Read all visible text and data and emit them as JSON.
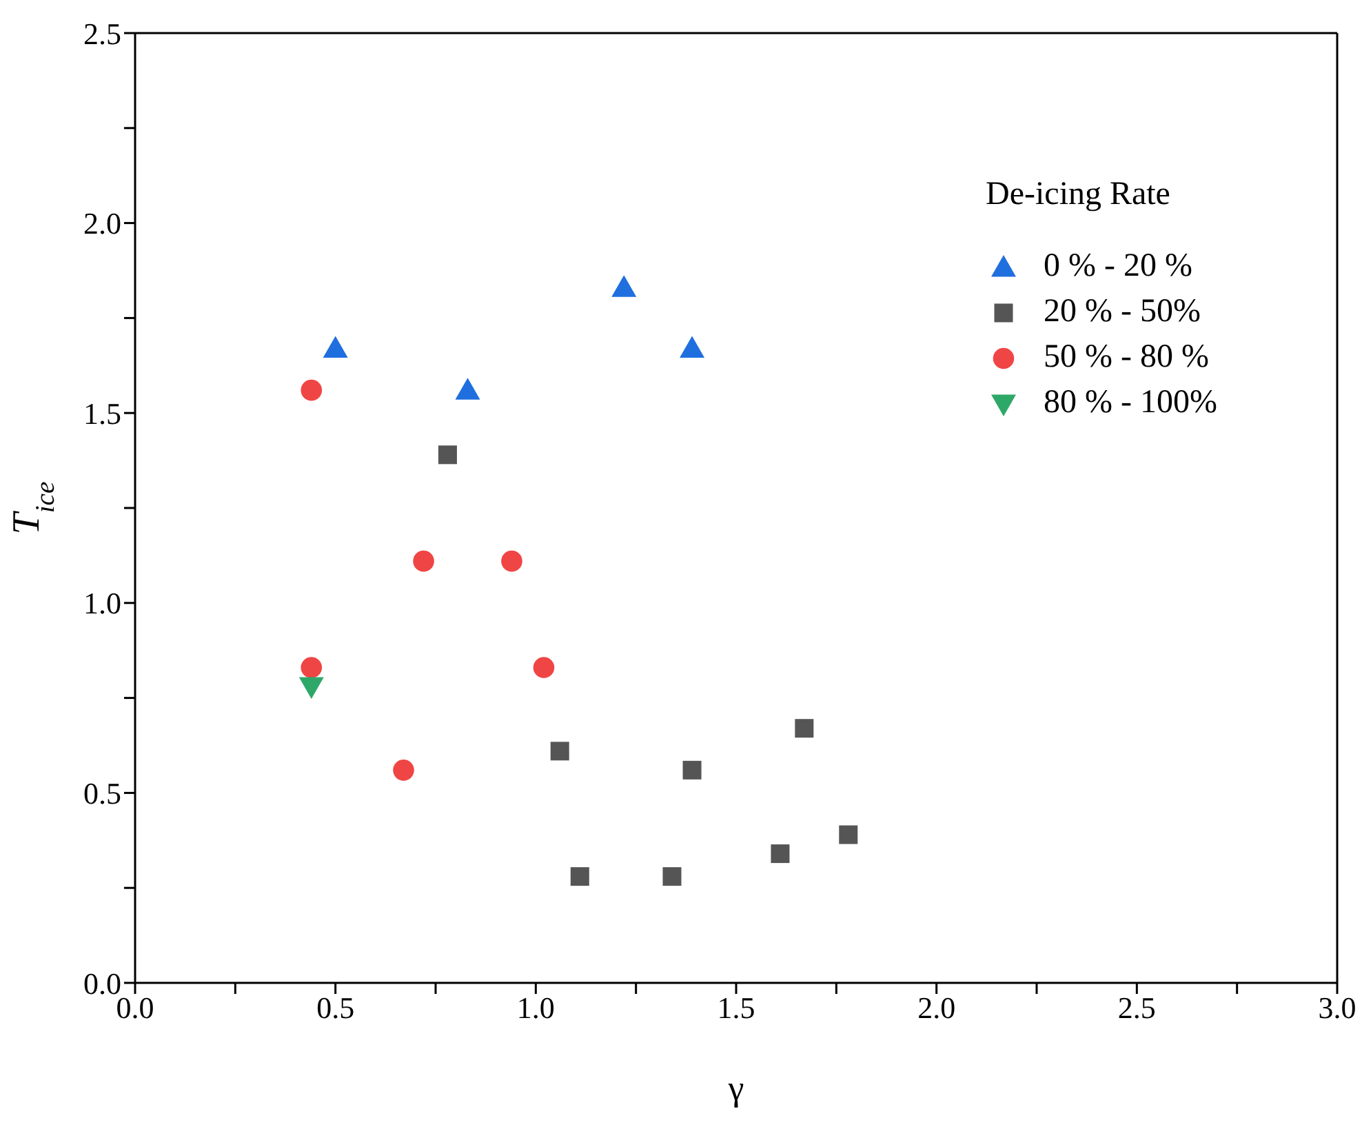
{
  "chart_data": {
    "type": "scatter",
    "xlabel": "γ",
    "ylabel": "T$_{ice}$",
    "legend_title": "De-icing Rate",
    "legend": "top right",
    "grid": false,
    "xlim": [
      0,
      3
    ],
    "xticks": [
      {
        "value": 0,
        "label": "0.0"
      },
      {
        "value": 0.25,
        "label": null
      },
      0.5,
      {
        "value": 0.75,
        "label": null
      },
      {
        "value": 1,
        "label": "1.0"
      },
      {
        "value": 1.25,
        "label": null
      },
      1.5,
      {
        "value": 1.75,
        "label": null
      },
      {
        "value": 2,
        "label": "2.0"
      },
      {
        "value": 2.25,
        "label": null
      },
      2.5,
      {
        "value": 2.75,
        "label": null
      },
      {
        "value": 3,
        "label": "3.0"
      }
    ],
    "ylim": [
      0,
      2.5
    ],
    "yticks": [
      {
        "value": 0,
        "label": "0.0"
      },
      {
        "value": 0.25,
        "label": null
      },
      0.5,
      {
        "value": 0.75,
        "label": null
      },
      {
        "value": 1,
        "label": "1.0"
      },
      {
        "value": 1.25,
        "label": null
      },
      1.5,
      {
        "value": 1.75,
        "label": null
      },
      {
        "value": 2,
        "label": "2.0"
      },
      {
        "value": 2.25,
        "label": null
      },
      2.5
    ],
    "series": [
      {
        "name": "0 % - 20 %",
        "color": "#1f6fdf",
        "marker": "triangle",
        "x": [
          0.5,
          0.83,
          1.22,
          1.39
        ],
        "values": [
          1.67,
          1.56,
          1.83,
          1.67
        ]
      },
      {
        "name": "20 % - 50%",
        "color": "#555555",
        "marker": "square",
        "x": [
          0.78,
          1.06,
          1.11,
          1.34,
          1.39,
          1.61,
          1.67,
          1.78
        ],
        "values": [
          1.39,
          0.61,
          0.28,
          0.28,
          0.56,
          0.34,
          0.67,
          0.39
        ]
      },
      {
        "name": "50 % - 80 %",
        "color": "#f04545",
        "marker": "circle",
        "x": [
          0.44,
          0.72,
          0.94,
          0.44,
          1.02,
          0.67
        ],
        "values": [
          1.56,
          1.11,
          1.11,
          0.83,
          0.83,
          0.56
        ]
      },
      {
        "name": "80 % - 100%",
        "color": "#2ea868",
        "marker": "triangle-down",
        "x": [
          0.44
        ],
        "values": [
          0.78
        ]
      }
    ]
  }
}
